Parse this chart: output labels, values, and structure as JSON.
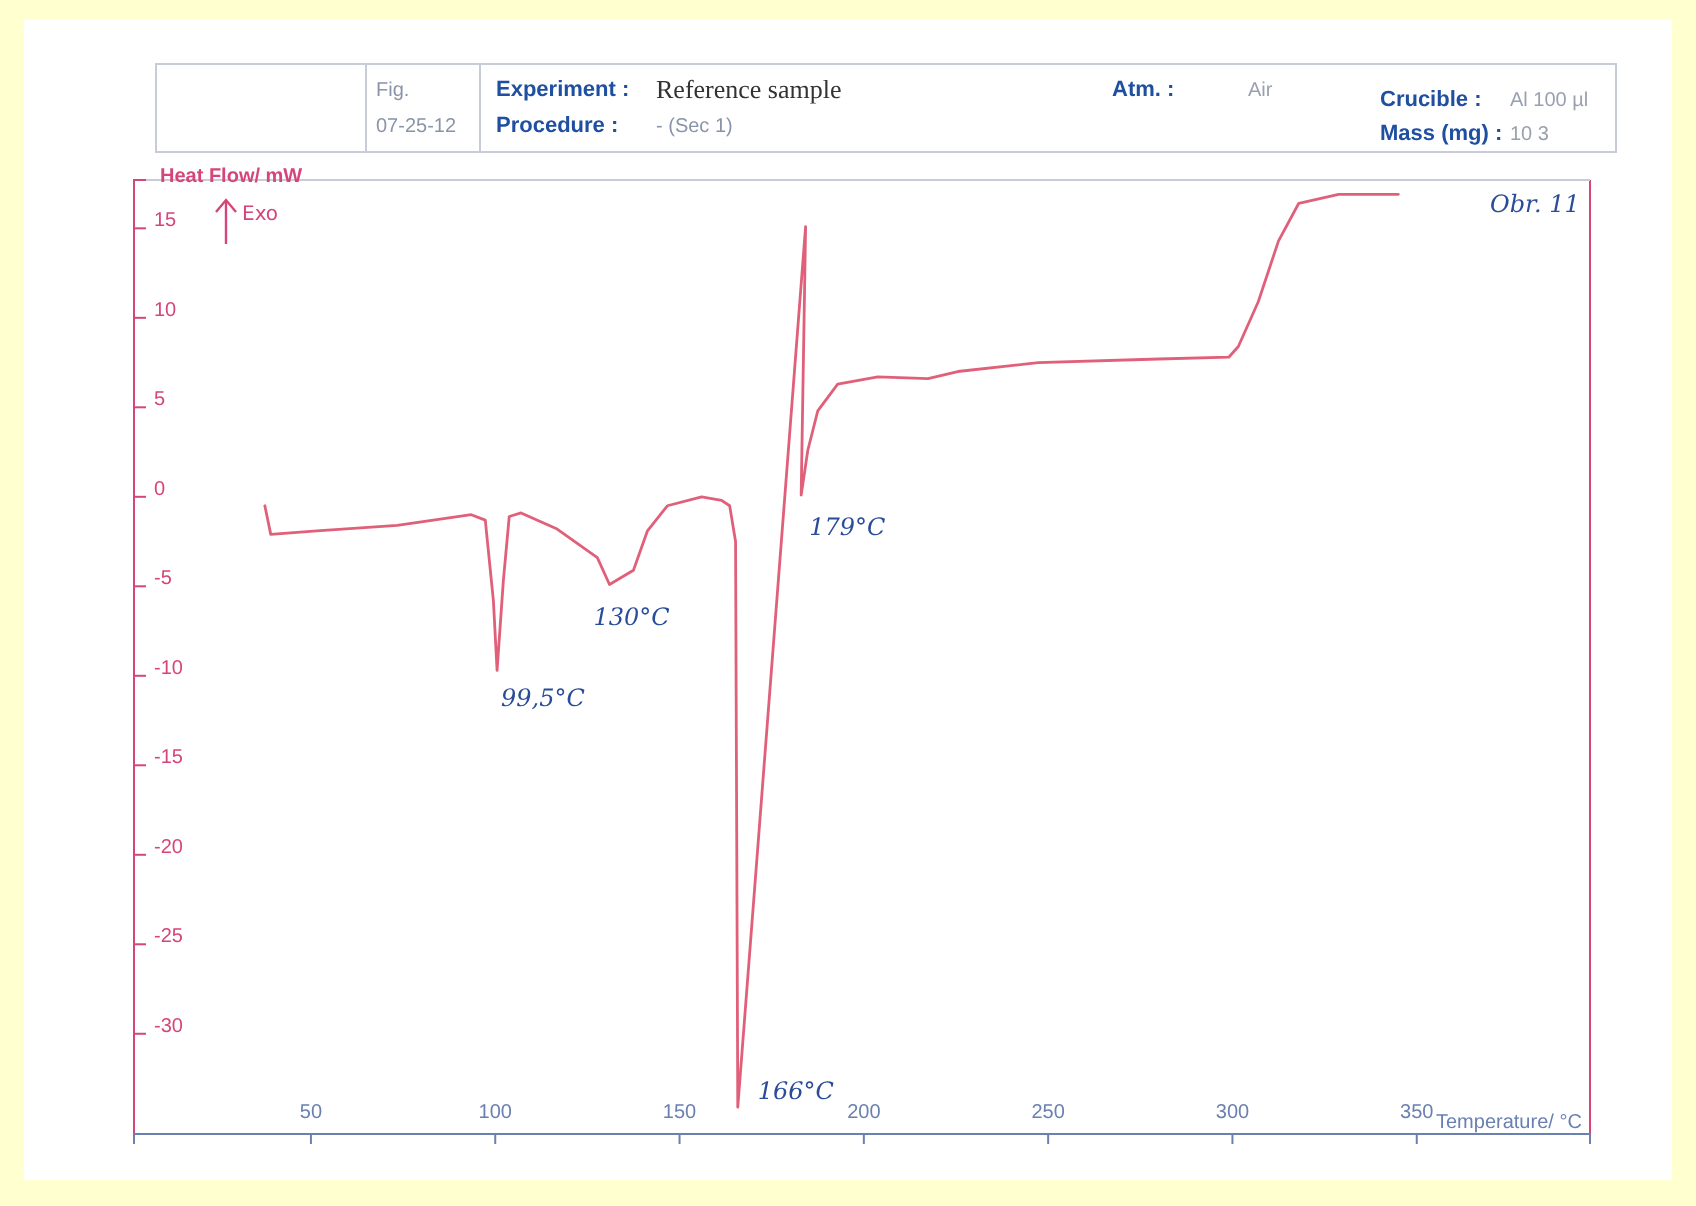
{
  "chart_data": {
    "type": "line",
    "xlabel": "Temperature/ °C",
    "ylabel": "Heat Flow/ mW",
    "xlim": [
      2,
      397
    ],
    "ylim": [
      -35.6,
      17.7
    ],
    "xticks": [
      50,
      100,
      150,
      200,
      250,
      300,
      350
    ],
    "yticks": [
      15,
      10,
      5,
      0,
      -5,
      -10,
      -15,
      -20,
      -25,
      -30
    ],
    "marker": "none",
    "line_style": "solid",
    "series": [
      {
        "color": "#e0607a",
        "x": [
          37.5,
          39.1,
          51.6,
          73.4,
          93.5,
          97.3,
          99.5,
          100.5,
          102.2,
          103.8,
          107,
          116.8,
          127.7,
          131,
          137.5,
          141.3,
          146.7,
          156,
          161.4,
          163.6,
          165.2,
          165.8,
          184.2,
          183,
          184.8,
          187.5,
          192.9,
          203.8,
          217.4,
          225.5,
          247.3,
          280,
          299,
          301.6,
          307,
          312.5,
          318,
          328.8,
          345
        ],
        "values": [
          -0.5,
          -2.1,
          -1.9,
          -1.6,
          -1.0,
          -1.3,
          -5.8,
          -9.7,
          -4.7,
          -1.1,
          -0.9,
          -1.8,
          -3.4,
          -4.9,
          -4.1,
          -1.9,
          -0.5,
          0,
          -0.2,
          -0.5,
          -2.5,
          -34.1,
          15.1,
          0.1,
          2.6,
          4.8,
          6.3,
          6.7,
          6.6,
          7.0,
          7.5,
          7.7,
          7.8,
          8.4,
          10.9,
          14.3,
          16.4,
          16.9,
          16.9
        ]
      }
    ],
    "annotations": [
      "Fig.",
      "07-25-12",
      "Experiment :",
      "Reference sample",
      "Procedure :",
      "- (Sec 1)",
      "Atm. :",
      "Air",
      "Crucible :",
      "Al 100 µl",
      "Mass (mg) :",
      "10 3",
      "Exo",
      "Obr. 11",
      {
        "text": "99,5°C",
        "x": 100.5,
        "y": -9.7
      },
      {
        "text": "130°C",
        "x": 131,
        "y": -4.9
      },
      {
        "text": "166°C",
        "x": 165.8,
        "y": -34.1
      },
      {
        "text": "179°C",
        "x": 183,
        "y": 0.1
      }
    ]
  }
}
